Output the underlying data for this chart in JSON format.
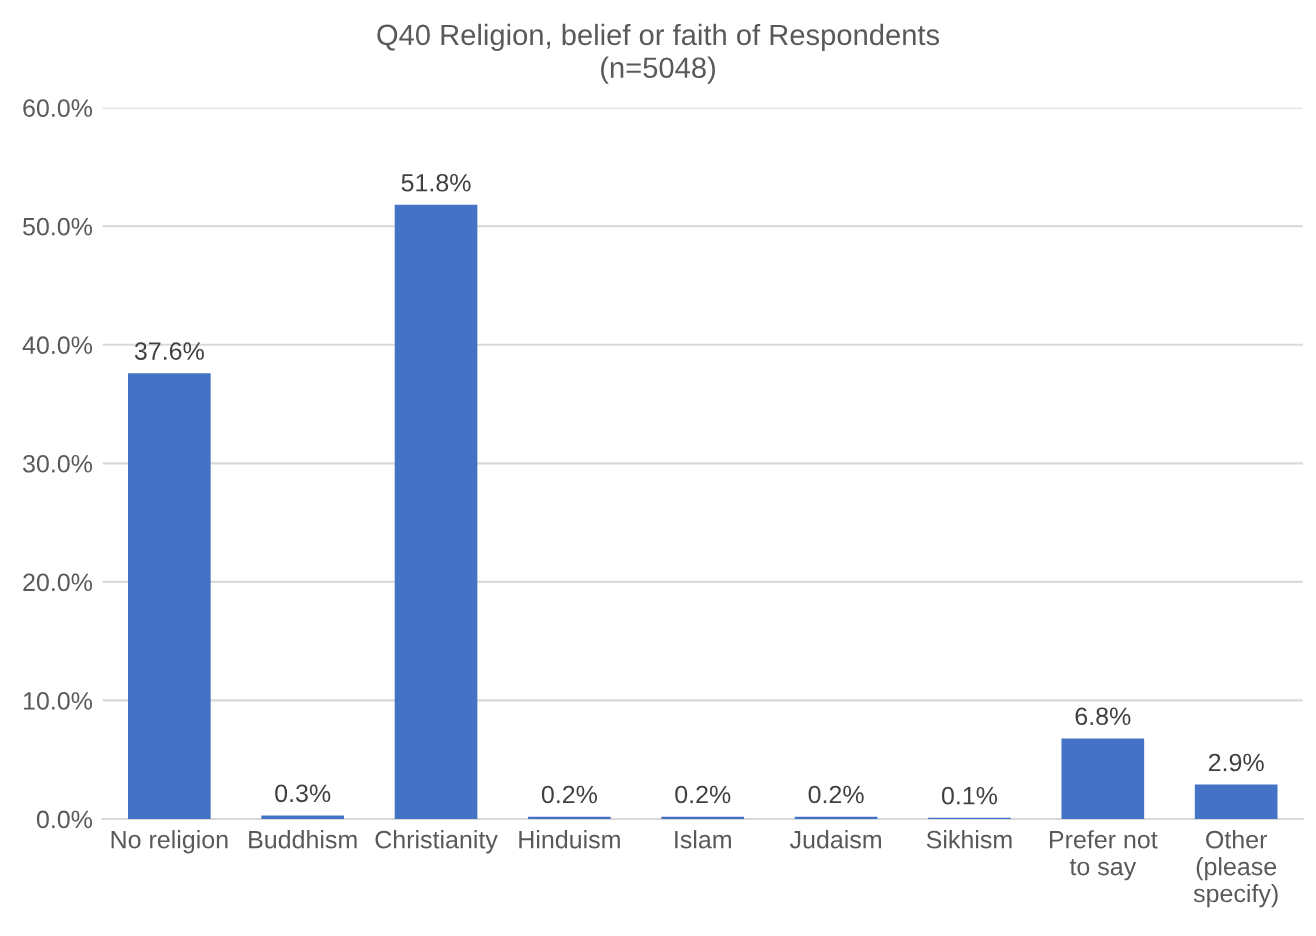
{
  "chart_data": {
    "type": "bar",
    "title": "Q40 Religion, belief or faith of Respondents",
    "subtitle": "(n=5048)",
    "categories": [
      "No religion",
      "Buddhism",
      "Christianity",
      "Hinduism",
      "Islam",
      "Judaism",
      "Sikhism",
      "Prefer not\nto say",
      "Other\n(please\nspecify)"
    ],
    "values": [
      37.6,
      0.3,
      51.8,
      0.2,
      0.2,
      0.2,
      0.1,
      6.8,
      2.9
    ],
    "value_labels": [
      "37.6%",
      "0.3%",
      "51.8%",
      "0.2%",
      "0.2%",
      "0.2%",
      "0.1%",
      "6.8%",
      "2.9%"
    ],
    "color": "#4472c4",
    "ylim": [
      0,
      60
    ],
    "yticks": [
      {
        "value": 0,
        "label": "0.0%"
      },
      {
        "value": 10,
        "label": "10.0%"
      },
      {
        "value": 20,
        "label": "20.0%"
      },
      {
        "value": 30,
        "label": "30.0%"
      },
      {
        "value": 40,
        "label": "40.0%"
      },
      {
        "value": 50,
        "label": "50.0%"
      },
      {
        "value": 60,
        "label": "60.0%"
      }
    ],
    "grid": "y",
    "legend": false
  }
}
